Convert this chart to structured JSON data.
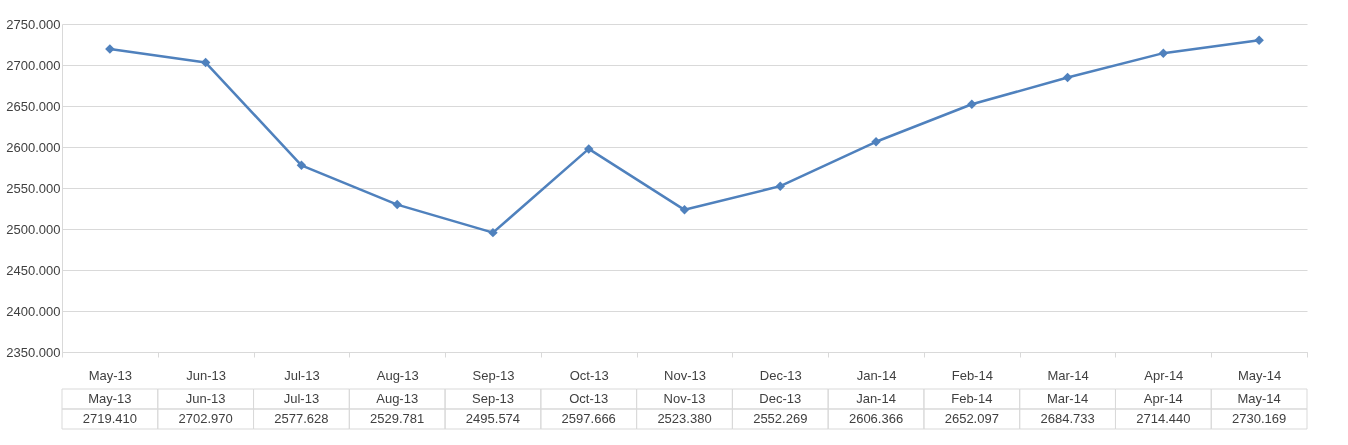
{
  "chart_data": {
    "type": "line",
    "categories": [
      "May-13",
      "Jun-13",
      "Jul-13",
      "Aug-13",
      "Sep-13",
      "Oct-13",
      "Nov-13",
      "Dec-13",
      "Jan-14",
      "Feb-14",
      "Mar-14",
      "Apr-14",
      "May-14"
    ],
    "series": [
      {
        "color": "#4f81bd",
        "values": [
          2719.41,
          2702.97,
          2577.628,
          2529.781,
          2495.574,
          2597.666,
          2523.38,
          2552.269,
          2606.366,
          2652.097,
          2684.733,
          2714.44,
          2730.169
        ],
        "value_labels": [
          "2719.410",
          "2702.970",
          "2577.628",
          "2529.781",
          "2495.574",
          "2597.666",
          "2523.380",
          "2552.269",
          "2606.366",
          "2652.097",
          "2684.733",
          "2714.440",
          "2730.169"
        ]
      }
    ],
    "ylim": [
      2350,
      2750
    ],
    "yticks": [
      {
        "value": 2350,
        "label": "2350.000"
      },
      {
        "value": 2400,
        "label": "2400.000"
      },
      {
        "value": 2450,
        "label": "2450.000"
      },
      {
        "value": 2500,
        "label": "2500.000"
      },
      {
        "value": 2550,
        "label": "2550.000"
      },
      {
        "value": 2600,
        "label": "2600.000"
      },
      {
        "value": 2650,
        "label": "2650.000"
      },
      {
        "value": 2700,
        "label": "2700.000"
      },
      {
        "value": 2750,
        "label": "2750.000"
      }
    ],
    "grid": "y",
    "marker": "diamond",
    "line_style": "solid"
  }
}
